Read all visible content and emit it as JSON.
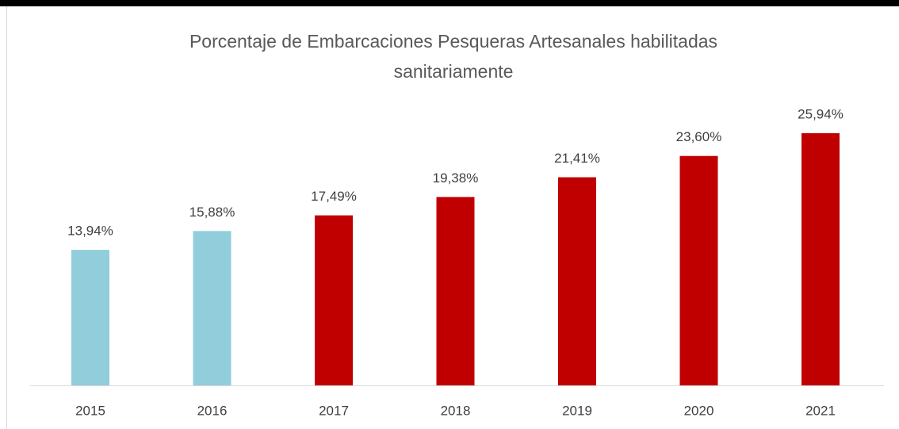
{
  "chart_data": {
    "type": "bar",
    "title": "Porcentaje de Embarcaciones Pesqueras Artesanales habilitadas sanitariamente",
    "categories": [
      "2015",
      "2016",
      "2017",
      "2018",
      "2019",
      "2020",
      "2021"
    ],
    "values": [
      13.94,
      15.88,
      17.49,
      19.38,
      21.41,
      23.6,
      25.94
    ],
    "value_labels": [
      "13,94%",
      "15,88%",
      "17,49%",
      "19,38%",
      "21,41%",
      "23,60%",
      "25,94%"
    ],
    "colors": [
      "#92cddc",
      "#92cddc",
      "#c00000",
      "#c00000",
      "#c00000",
      "#c00000",
      "#c00000"
    ]
  }
}
